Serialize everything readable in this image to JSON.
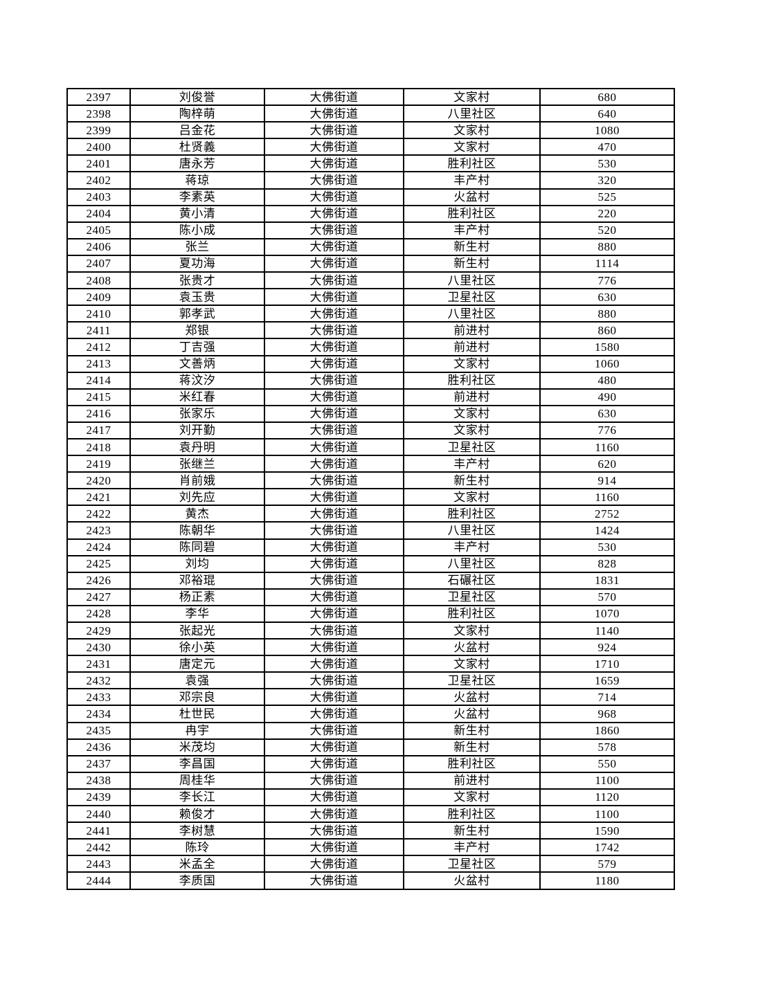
{
  "page": {
    "background": "#ffffff",
    "text_color": "#000000",
    "border_color": "#000000"
  },
  "table": {
    "type": "table",
    "note_structure": [
      "id",
      "name",
      "street",
      "village",
      "value"
    ],
    "rows": [
      {
        "id": "2397",
        "name": "刘俊誉",
        "street": "大佛街道",
        "village": "文家村",
        "value": "680"
      },
      {
        "id": "2398",
        "name": "陶梓萌",
        "street": "大佛街道",
        "village": "八里社区",
        "value": "640"
      },
      {
        "id": "2399",
        "name": "吕金花",
        "street": "大佛街道",
        "village": "文家村",
        "value": "1080"
      },
      {
        "id": "2400",
        "name": "杜贤義",
        "street": "大佛街道",
        "village": "文家村",
        "value": "470"
      },
      {
        "id": "2401",
        "name": "唐永芳",
        "street": "大佛街道",
        "village": "胜利社区",
        "value": "530"
      },
      {
        "id": "2402",
        "name": "蒋琼",
        "street": "大佛街道",
        "village": "丰产村",
        "value": "320"
      },
      {
        "id": "2403",
        "name": "李素英",
        "street": "大佛街道",
        "village": "火盆村",
        "value": "525"
      },
      {
        "id": "2404",
        "name": "黄小清",
        "street": "大佛街道",
        "village": "胜利社区",
        "value": "220"
      },
      {
        "id": "2405",
        "name": "陈小成",
        "street": "大佛街道",
        "village": "丰产村",
        "value": "520"
      },
      {
        "id": "2406",
        "name": "张兰",
        "street": "大佛街道",
        "village": "新生村",
        "value": "880"
      },
      {
        "id": "2407",
        "name": "夏功海",
        "street": "大佛街道",
        "village": "新生村",
        "value": "1114"
      },
      {
        "id": "2408",
        "name": "张贵才",
        "street": "大佛街道",
        "village": "八里社区",
        "value": "776"
      },
      {
        "id": "2409",
        "name": "袁玉贵",
        "street": "大佛街道",
        "village": "卫星社区",
        "value": "630"
      },
      {
        "id": "2410",
        "name": "郭孝武",
        "street": "大佛街道",
        "village": "八里社区",
        "value": "880"
      },
      {
        "id": "2411",
        "name": "郑银",
        "street": "大佛街道",
        "village": "前进村",
        "value": "860"
      },
      {
        "id": "2412",
        "name": "丁吉强",
        "street": "大佛街道",
        "village": "前进村",
        "value": "1580"
      },
      {
        "id": "2413",
        "name": "文善炳",
        "street": "大佛街道",
        "village": "文家村",
        "value": "1060"
      },
      {
        "id": "2414",
        "name": "蒋汶汐",
        "street": "大佛街道",
        "village": "胜利社区",
        "value": "480"
      },
      {
        "id": "2415",
        "name": "米红春",
        "street": "大佛街道",
        "village": "前进村",
        "value": "490"
      },
      {
        "id": "2416",
        "name": "张家乐",
        "street": "大佛街道",
        "village": "文家村",
        "value": "630"
      },
      {
        "id": "2417",
        "name": "刘开勤",
        "street": "大佛街道",
        "village": "文家村",
        "value": "776"
      },
      {
        "id": "2418",
        "name": "袁丹明",
        "street": "大佛街道",
        "village": "卫星社区",
        "value": "1160"
      },
      {
        "id": "2419",
        "name": "张继兰",
        "street": "大佛街道",
        "village": "丰产村",
        "value": "620"
      },
      {
        "id": "2420",
        "name": "肖前娥",
        "street": "大佛街道",
        "village": "新生村",
        "value": "914"
      },
      {
        "id": "2421",
        "name": "刘先应",
        "street": "大佛街道",
        "village": "文家村",
        "value": "1160"
      },
      {
        "id": "2422",
        "name": "黄杰",
        "street": "大佛街道",
        "village": "胜利社区",
        "value": "2752"
      },
      {
        "id": "2423",
        "name": "陈朝华",
        "street": "大佛街道",
        "village": "八里社区",
        "value": "1424"
      },
      {
        "id": "2424",
        "name": "陈同碧",
        "street": "大佛街道",
        "village": "丰产村",
        "value": "530"
      },
      {
        "id": "2425",
        "name": "刘均",
        "street": "大佛街道",
        "village": "八里社区",
        "value": "828"
      },
      {
        "id": "2426",
        "name": "邓裕琨",
        "street": "大佛街道",
        "village": "石碾社区",
        "value": "1831"
      },
      {
        "id": "2427",
        "name": "杨正素",
        "street": "大佛街道",
        "village": "卫星社区",
        "value": "570"
      },
      {
        "id": "2428",
        "name": "李华",
        "street": "大佛街道",
        "village": "胜利社区",
        "value": "1070"
      },
      {
        "id": "2429",
        "name": "张起光",
        "street": "大佛街道",
        "village": "文家村",
        "value": "1140"
      },
      {
        "id": "2430",
        "name": "徐小英",
        "street": "大佛街道",
        "village": "火盆村",
        "value": "924"
      },
      {
        "id": "2431",
        "name": "唐定元",
        "street": "大佛街道",
        "village": "文家村",
        "value": "1710"
      },
      {
        "id": "2432",
        "name": "袁强",
        "street": "大佛街道",
        "village": "卫星社区",
        "value": "1659"
      },
      {
        "id": "2433",
        "name": "邓宗良",
        "street": "大佛街道",
        "village": "火盆村",
        "value": "714"
      },
      {
        "id": "2434",
        "name": "杜世民",
        "street": "大佛街道",
        "village": "火盆村",
        "value": "968"
      },
      {
        "id": "2435",
        "name": "冉宇",
        "street": "大佛街道",
        "village": "新生村",
        "value": "1860"
      },
      {
        "id": "2436",
        "name": "米茂均",
        "street": "大佛街道",
        "village": "新生村",
        "value": "578"
      },
      {
        "id": "2437",
        "name": "李昌国",
        "street": "大佛街道",
        "village": "胜利社区",
        "value": "550"
      },
      {
        "id": "2438",
        "name": "周桂华",
        "street": "大佛街道",
        "village": "前进村",
        "value": "1100"
      },
      {
        "id": "2439",
        "name": "李长江",
        "street": "大佛街道",
        "village": "文家村",
        "value": "1120"
      },
      {
        "id": "2440",
        "name": "赖俊才",
        "street": "大佛街道",
        "village": "胜利社区",
        "value": "1100"
      },
      {
        "id": "2441",
        "name": "李树慧",
        "street": "大佛街道",
        "village": "新生村",
        "value": "1590"
      },
      {
        "id": "2442",
        "name": "陈玲",
        "street": "大佛街道",
        "village": "丰产村",
        "value": "1742"
      },
      {
        "id": "2443",
        "name": "米孟全",
        "street": "大佛街道",
        "village": "卫星社区",
        "value": "579"
      },
      {
        "id": "2444",
        "name": "李质国",
        "street": "大佛街道",
        "village": "火盆村",
        "value": "1180"
      }
    ]
  }
}
